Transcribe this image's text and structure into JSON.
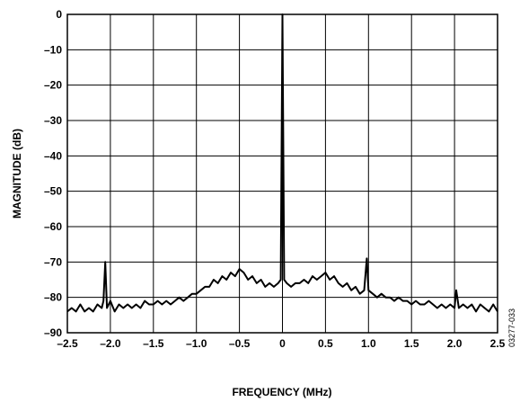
{
  "chart_data": {
    "type": "line",
    "title": "",
    "xlabel": "FREQUENCY (MHz)",
    "ylabel": "MAGNITUDE (dB)",
    "xlim": [
      -2.5,
      2.5
    ],
    "ylim": [
      -90,
      0
    ],
    "x_ticks": [
      "–2.5",
      "–2.0",
      "–1.5",
      "–1.0",
      "–0.5",
      "0",
      "0.5",
      "1.0",
      "1.5",
      "2.0",
      "2.5"
    ],
    "y_ticks": [
      "0",
      "–10",
      "–20",
      "–30",
      "–40",
      "–50",
      "–60",
      "–70",
      "–80",
      "–90"
    ],
    "grid": true,
    "figure_id": "03277-033",
    "series": [
      {
        "points": [
          [
            -2.5,
            -84
          ],
          [
            -2.45,
            -83
          ],
          [
            -2.4,
            -84
          ],
          [
            -2.35,
            -82
          ],
          [
            -2.3,
            -84
          ],
          [
            -2.25,
            -83
          ],
          [
            -2.2,
            -84
          ],
          [
            -2.15,
            -82
          ],
          [
            -2.1,
            -83
          ],
          [
            -2.08,
            -81
          ],
          [
            -2.06,
            -70
          ],
          [
            -2.04,
            -83
          ],
          [
            -2.0,
            -81
          ],
          [
            -1.95,
            -84
          ],
          [
            -1.9,
            -82
          ],
          [
            -1.85,
            -83
          ],
          [
            -1.8,
            -82
          ],
          [
            -1.75,
            -83
          ],
          [
            -1.7,
            -82
          ],
          [
            -1.65,
            -83
          ],
          [
            -1.6,
            -81
          ],
          [
            -1.55,
            -82
          ],
          [
            -1.5,
            -82
          ],
          [
            -1.45,
            -81
          ],
          [
            -1.4,
            -82
          ],
          [
            -1.35,
            -81
          ],
          [
            -1.3,
            -82
          ],
          [
            -1.25,
            -81
          ],
          [
            -1.2,
            -80
          ],
          [
            -1.15,
            -81
          ],
          [
            -1.1,
            -80
          ],
          [
            -1.05,
            -79
          ],
          [
            -1.0,
            -79
          ],
          [
            -0.95,
            -78
          ],
          [
            -0.9,
            -77
          ],
          [
            -0.85,
            -77
          ],
          [
            -0.8,
            -75
          ],
          [
            -0.75,
            -76
          ],
          [
            -0.7,
            -74
          ],
          [
            -0.65,
            -75
          ],
          [
            -0.6,
            -73
          ],
          [
            -0.55,
            -74
          ],
          [
            -0.5,
            -72
          ],
          [
            -0.45,
            -73
          ],
          [
            -0.4,
            -75
          ],
          [
            -0.35,
            -74
          ],
          [
            -0.3,
            -76
          ],
          [
            -0.25,
            -75
          ],
          [
            -0.2,
            -77
          ],
          [
            -0.15,
            -76
          ],
          [
            -0.1,
            -77
          ],
          [
            -0.05,
            -76
          ],
          [
            -0.02,
            -75
          ],
          [
            0.0,
            0
          ],
          [
            0.02,
            -75
          ],
          [
            0.05,
            -76
          ],
          [
            0.1,
            -77
          ],
          [
            0.15,
            -76
          ],
          [
            0.2,
            -76
          ],
          [
            0.25,
            -75
          ],
          [
            0.3,
            -76
          ],
          [
            0.35,
            -74
          ],
          [
            0.4,
            -75
          ],
          [
            0.45,
            -74
          ],
          [
            0.5,
            -73
          ],
          [
            0.55,
            -75
          ],
          [
            0.6,
            -74
          ],
          [
            0.65,
            -76
          ],
          [
            0.7,
            -77
          ],
          [
            0.75,
            -76
          ],
          [
            0.8,
            -78
          ],
          [
            0.85,
            -77
          ],
          [
            0.9,
            -79
          ],
          [
            0.95,
            -78
          ],
          [
            0.98,
            -69
          ],
          [
            1.0,
            -78
          ],
          [
            1.05,
            -79
          ],
          [
            1.1,
            -80
          ],
          [
            1.15,
            -79
          ],
          [
            1.2,
            -80
          ],
          [
            1.25,
            -80
          ],
          [
            1.3,
            -81
          ],
          [
            1.35,
            -80
          ],
          [
            1.4,
            -81
          ],
          [
            1.45,
            -81
          ],
          [
            1.5,
            -82
          ],
          [
            1.55,
            -81
          ],
          [
            1.6,
            -82
          ],
          [
            1.65,
            -82
          ],
          [
            1.7,
            -81
          ],
          [
            1.75,
            -82
          ],
          [
            1.8,
            -83
          ],
          [
            1.85,
            -82
          ],
          [
            1.9,
            -83
          ],
          [
            1.95,
            -82
          ],
          [
            2.0,
            -83
          ],
          [
            2.02,
            -78
          ],
          [
            2.05,
            -83
          ],
          [
            2.1,
            -82
          ],
          [
            2.15,
            -83
          ],
          [
            2.2,
            -82
          ],
          [
            2.25,
            -84
          ],
          [
            2.3,
            -82
          ],
          [
            2.35,
            -83
          ],
          [
            2.4,
            -84
          ],
          [
            2.45,
            -82
          ],
          [
            2.5,
            -84
          ]
        ]
      }
    ]
  }
}
